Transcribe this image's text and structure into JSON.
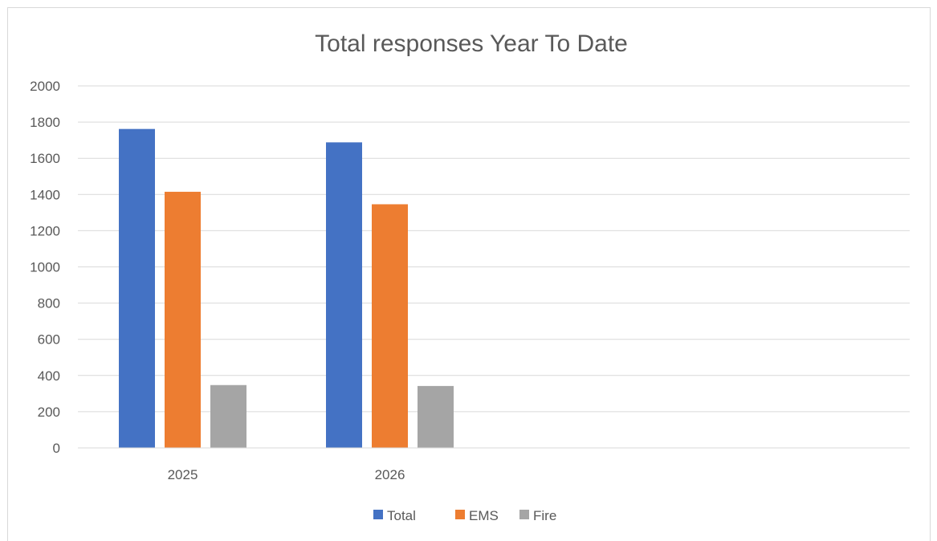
{
  "chart_data": {
    "type": "bar",
    "title": "Total responses Year To Date",
    "categories": [
      "2025",
      "2026"
    ],
    "series": [
      {
        "name": "Total",
        "color": "#4472c4",
        "values": [
          1762,
          1688
        ]
      },
      {
        "name": "EMS",
        "color": "#ed7d31",
        "values": [
          1415,
          1346
        ]
      },
      {
        "name": "Fire",
        "color": "#a5a5a5",
        "values": [
          347,
          342
        ]
      }
    ],
    "y_ticks": [
      "0",
      "200",
      "400",
      "600",
      "800",
      "1000",
      "1200",
      "1400",
      "1600",
      "1800",
      "2000"
    ],
    "ylim": [
      0,
      2000
    ],
    "grid": true,
    "legend_position": "bottom"
  }
}
